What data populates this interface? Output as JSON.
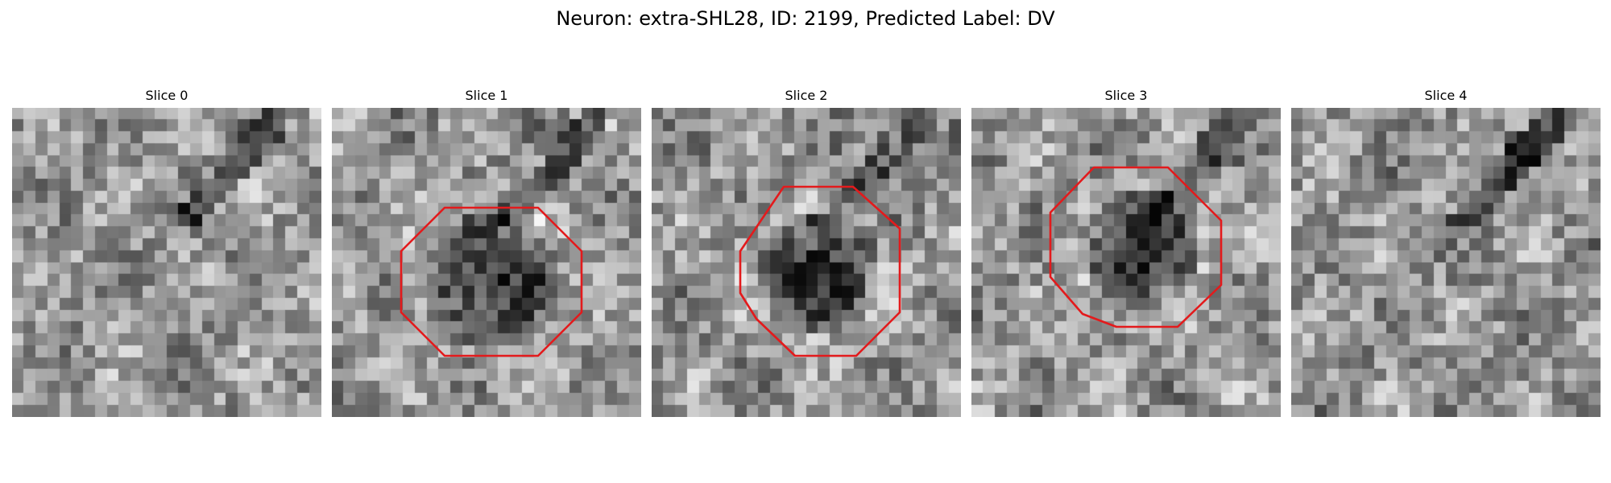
{
  "figure": {
    "title": "Neuron: extra-SHL28, ID: 2199, Predicted Label: DV"
  },
  "slices": [
    {
      "title": "Slice 0",
      "has_outline": false,
      "dark_center": false
    },
    {
      "title": "Slice 1",
      "has_outline": true,
      "dark_center": true
    },
    {
      "title": "Slice 2",
      "has_outline": true,
      "dark_center": true
    },
    {
      "title": "Slice 3",
      "has_outline": true,
      "dark_center": true
    },
    {
      "title": "Slice 4",
      "has_outline": false,
      "dark_center": false
    }
  ],
  "colors": {
    "outline": "#e31a1c",
    "background": "#ffffff",
    "colormap": "grayscale"
  }
}
